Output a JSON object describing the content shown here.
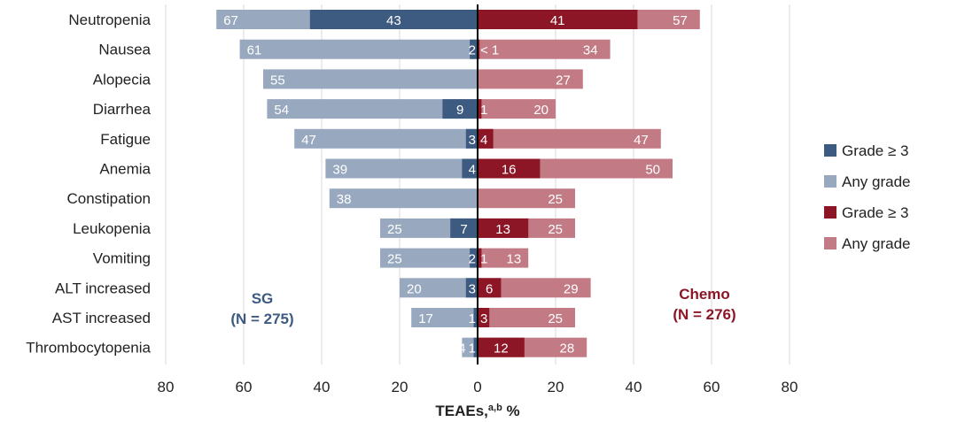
{
  "chart_data": {
    "type": "bar",
    "orientation": "horizontal-diverging",
    "categories": [
      "Neutropenia",
      "Nausea",
      "Alopecia",
      "Diarrhea",
      "Fatigue",
      "Anemia",
      "Constipation",
      "Leukopenia",
      "Vomiting",
      "ALT increased",
      "AST increased",
      "Thrombocytopenia"
    ],
    "series": [
      {
        "name": "Grade ≥ 3",
        "group": "SG",
        "side": "left",
        "color": "#3d5a80",
        "values": [
          43,
          2,
          0,
          9,
          3,
          4,
          0,
          7,
          2,
          3,
          1,
          1
        ],
        "labels": [
          "43",
          "2",
          "",
          "9",
          "3",
          "4",
          "",
          "7",
          "2",
          "3",
          "1",
          "1"
        ]
      },
      {
        "name": "Any grade",
        "group": "SG",
        "side": "left",
        "color": "#97a8bf",
        "values": [
          67,
          61,
          55,
          54,
          47,
          39,
          38,
          25,
          25,
          20,
          17,
          4
        ],
        "labels": [
          "67",
          "61",
          "55",
          "54",
          "47",
          "39",
          "38",
          "25",
          "25",
          "20",
          "17",
          "4"
        ]
      },
      {
        "name": "Grade ≥ 3",
        "group": "Chemo",
        "side": "right",
        "color": "#8c1526",
        "values": [
          41,
          0.5,
          0,
          1,
          4,
          16,
          0,
          13,
          1,
          6,
          3,
          12
        ],
        "labels": [
          "41",
          "< 1",
          "",
          "1",
          "4",
          "16",
          "",
          "13",
          "1",
          "6",
          "3",
          "12"
        ]
      },
      {
        "name": "Any grade",
        "group": "Chemo",
        "side": "right",
        "color": "#c27a85",
        "values": [
          57,
          34,
          27,
          20,
          47,
          50,
          25,
          25,
          13,
          29,
          25,
          28
        ],
        "labels": [
          "57",
          "34",
          "27",
          "20",
          "47",
          "50",
          "25",
          "25",
          "13",
          "29",
          "25",
          "28"
        ]
      }
    ],
    "xticks": [
      "80",
      "60",
      "40",
      "20",
      "0",
      "20",
      "40",
      "60",
      "80"
    ],
    "xlim": [
      -80,
      80
    ],
    "xlabel": "TEAEs,",
    "xlabel_sup": "a,b",
    "xlabel_unit": " %",
    "grid": true,
    "legend_placement": "right",
    "group_labels": [
      {
        "name": "SG",
        "n": "(N = 275)",
        "color": "#3d5a80"
      },
      {
        "name": "Chemo",
        "n": "(N = 276)",
        "color": "#8c1526"
      }
    ]
  }
}
